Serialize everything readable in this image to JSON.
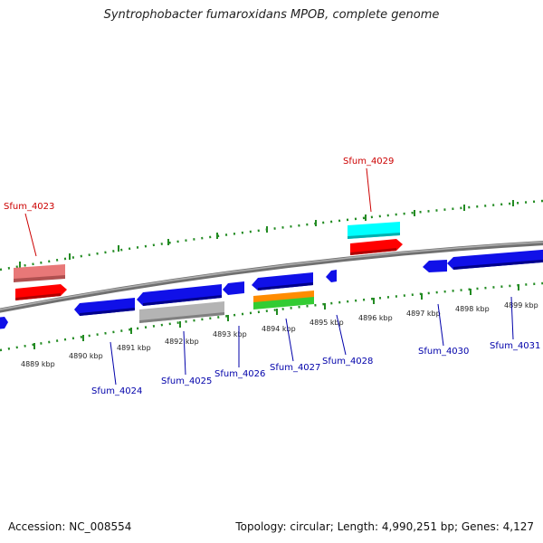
{
  "title": "Syntrophobacter fumaroxidans MPOB, complete genome",
  "footer": {
    "accession": "Accession: NC_008554",
    "topology": "Topology: circular; Length: 4,990,251 bp; Genes: 4,127"
  },
  "colors": {
    "blue_gene": "#1010e8",
    "red_gene": "#ff0000",
    "pink_gene": "#e87878",
    "cyan_gene": "#00ffff",
    "gray_gene": "#b4b4b4",
    "orange_gene": "#ff8c00",
    "green_gene": "#33cc33",
    "tick_green": "#228b22",
    "backbone": "#888888",
    "label_red": "#cc0000",
    "label_blue": "#0000aa"
  },
  "kbp_labels": [
    "4889 kbp",
    "4890 kbp",
    "4891 kbp",
    "4892 kbp",
    "4893 kbp",
    "4894 kbp",
    "4895 kbp",
    "4896 kbp",
    "4897 kbp",
    "4898 kbp",
    "4899 kbp"
  ],
  "gene_labels_top": [
    "Sfum_4023",
    "Sfum_4029"
  ],
  "gene_labels_bottom": [
    "Sfum_4024",
    "Sfum_4025",
    "Sfum_4026",
    "Sfum_4027",
    "Sfum_4028",
    "Sfum_4030",
    "Sfum_4031"
  ]
}
